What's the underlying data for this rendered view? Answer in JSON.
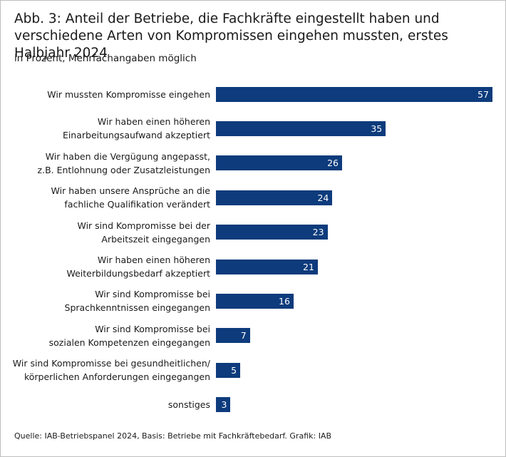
{
  "chart_data": {
    "type": "bar",
    "orientation": "horizontal",
    "title": "Abb. 3: Anteil der Betriebe, die Fachkräfte eingestellt haben und verschiedene Arten von Kompromissen eingehen mussten, erstes Halbjahr 2024",
    "subtitle": "in Prozent, Mehrfachangaben möglich",
    "categories": [
      "Wir mussten Kompromisse eingehen",
      "Wir haben einen höheren\nEinarbeitungsaufwand akzeptiert",
      "Wir haben die Vergügung angepasst,\nz.B. Entlohnung oder Zusatzleistungen",
      "Wir haben unsere Ansprüche an die\nfachliche Qualifikation verändert",
      "Wir sind Kompromisse bei der\nArbeitszeit eingegangen",
      "Wir haben einen höheren\nWeiterbildungsbedarf akzeptiert",
      "Wir sind Kompromisse bei\nSprachkenntnissen eingegangen",
      "Wir sind Kompromisse bei\nsozialen Kompetenzen eingegangen",
      "Wir sind Kompromisse bei gesundheitlichen/\nkörperlichen Anforderungen eingegangen",
      "sonstiges"
    ],
    "values": [
      57,
      35,
      26,
      24,
      23,
      21,
      16,
      7,
      5,
      3
    ],
    "color": "#0d3b7c",
    "source": "Quelle: IAB-Betriebspanel 2024, Basis: Betriebe mit Fachkräftebedarf. Grafik: IAB"
  }
}
